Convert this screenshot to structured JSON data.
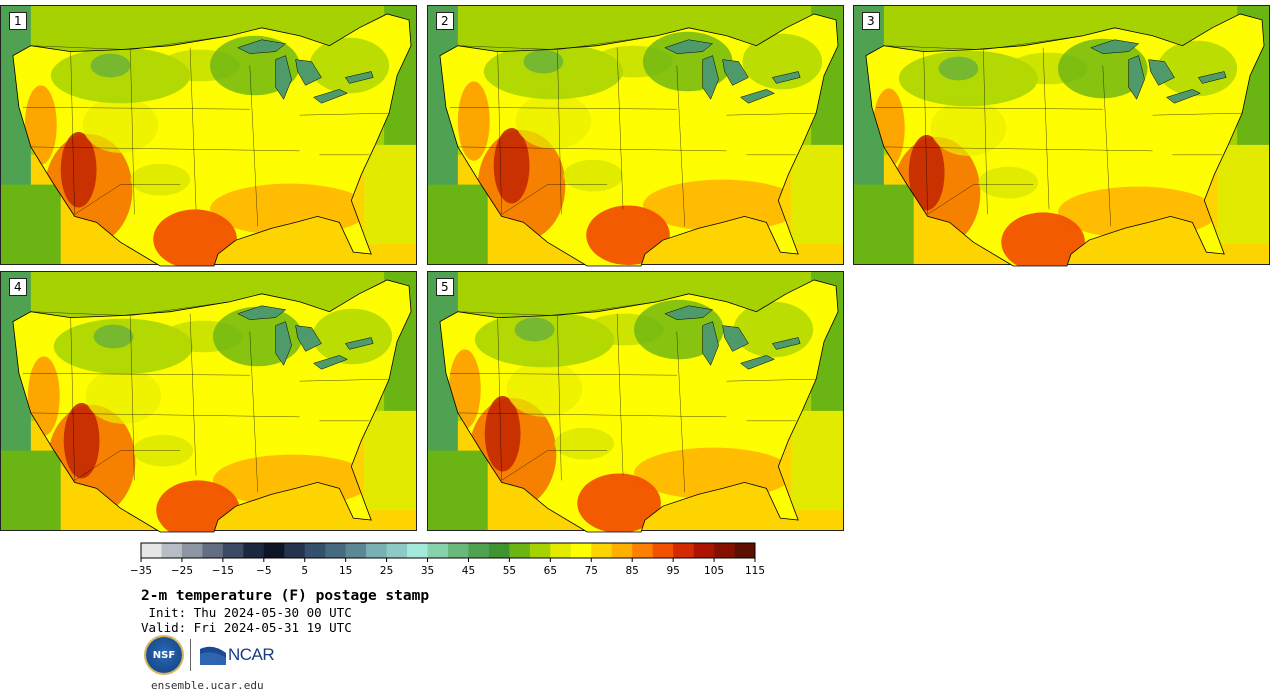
{
  "panels": [
    {
      "label": "1",
      "variant": 0
    },
    {
      "label": "2",
      "variant": 1
    },
    {
      "label": "3",
      "variant": 2
    },
    {
      "label": "4",
      "variant": 3
    },
    {
      "label": "5",
      "variant": 4
    }
  ],
  "colorbar": {
    "tick_labels": [
      "−35",
      "−25",
      "−15",
      "−5",
      "5",
      "15",
      "25",
      "35",
      "45",
      "55",
      "65",
      "75",
      "85",
      "95",
      "105",
      "115"
    ],
    "colors": [
      "#e6e6e6",
      "#b8bcc4",
      "#8d94a2",
      "#646e82",
      "#3d4a64",
      "#1c2840",
      "#0d1426",
      "#24344c",
      "#33506c",
      "#466a80",
      "#5c8896",
      "#78b0b4",
      "#8ccac6",
      "#a4e8dc",
      "#86d2aa",
      "#6ab87c",
      "#4ea252",
      "#3e9430",
      "#6ab414",
      "#a6d202",
      "#e2ea00",
      "#fefe00",
      "#fed400",
      "#feb000",
      "#fe8000",
      "#f25200",
      "#d42a00",
      "#ac1400",
      "#861000",
      "#5e1000"
    ]
  },
  "title": "2-m temperature (F) postage stamp",
  "init": " Init: Thu 2024-05-30 00 UTC",
  "valid": "Valid: Fri 2024-05-31 19 UTC",
  "logos": {
    "nsf": "NSF",
    "ncar": "NCAR"
  },
  "site": "ensemble.ucar.edu"
}
